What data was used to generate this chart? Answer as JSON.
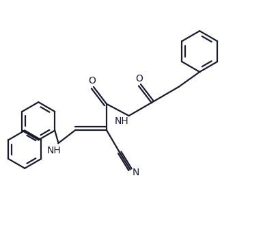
{
  "bg_color": "#ffffff",
  "line_color": "#1a1a2e",
  "line_width": 1.6,
  "font_size": 10,
  "fig_width": 3.85,
  "fig_height": 3.52,
  "dpi": 100,
  "xlim": [
    0,
    10
  ],
  "ylim": [
    0,
    9.14
  ],
  "labels": {
    "O1": "O",
    "O2": "O",
    "NH1": "NH",
    "NH2": "NH",
    "N": "N"
  }
}
